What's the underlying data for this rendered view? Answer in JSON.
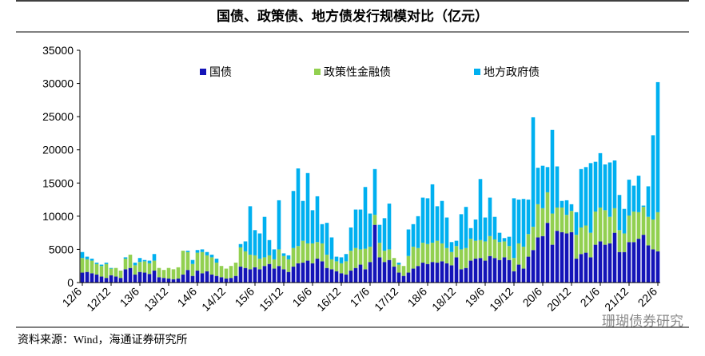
{
  "chart_data": {
    "type": "stacked_bar",
    "title": "国债、政策债、地方债发行规模对比（亿元）",
    "source": "资料来源：Wind，海通证券研究所",
    "watermark": "珊瑚债券研究",
    "categories": [
      "12/6",
      null,
      null,
      null,
      null,
      null,
      "12/12",
      null,
      null,
      null,
      null,
      null,
      "13/6",
      null,
      null,
      null,
      null,
      null,
      "13/12",
      null,
      null,
      null,
      null,
      null,
      "14/6",
      null,
      null,
      null,
      null,
      null,
      "14/12",
      null,
      null,
      null,
      null,
      null,
      "15/6",
      null,
      null,
      null,
      null,
      null,
      "15/12",
      null,
      null,
      null,
      null,
      null,
      "16/6",
      null,
      null,
      null,
      null,
      null,
      "16/12",
      null,
      null,
      null,
      null,
      null,
      "17/6",
      null,
      null,
      null,
      null,
      null,
      "17/12",
      null,
      null,
      null,
      null,
      null,
      "18/6",
      null,
      null,
      null,
      null,
      null,
      "18/12",
      null,
      null,
      null,
      null,
      null,
      "19/6",
      null,
      null,
      null,
      null,
      null,
      "19/12",
      null,
      null,
      null,
      null,
      null,
      "20/6",
      null,
      null,
      null,
      null,
      null,
      "20/12",
      null,
      null,
      null,
      null,
      null,
      "21/6",
      null,
      null,
      null,
      null,
      null,
      "21/12",
      null,
      null,
      null,
      null,
      null,
      "22/6"
    ],
    "series": [
      {
        "name": "国债",
        "color": "#1414b8",
        "values": [
          1500,
          1600,
          1400,
          1200,
          900,
          700,
          1100,
          900,
          700,
          2000,
          2200,
          1200,
          1600,
          1500,
          1300,
          1800,
          800,
          700,
          600,
          500,
          600,
          1200,
          1900,
          1000,
          1800,
          1400,
          1700,
          1200,
          1000,
          800,
          600,
          700,
          1000,
          2400,
          2200,
          2000,
          2300,
          2000,
          2500,
          2800,
          2100,
          2500,
          2000,
          1600,
          2400,
          2900,
          3000,
          3300,
          2900,
          3600,
          3200,
          2200,
          2000,
          1700,
          1400,
          1200,
          1800,
          2200,
          2700,
          2000,
          3100,
          8700,
          3800,
          3100,
          3400,
          2400,
          1500,
          1000,
          1500,
          2100,
          2500,
          3000,
          2800,
          3100,
          3000,
          3200,
          2900,
          2600,
          3800,
          2000,
          2200,
          3300,
          3600,
          3700,
          3300,
          4000,
          3700,
          3400,
          3800,
          3400,
          1700,
          2700,
          2100,
          3900,
          4900,
          6800,
          7000,
          9000,
          5700,
          7800,
          7600,
          7400,
          7600,
          3600,
          4300,
          4500,
          3800,
          5700,
          6200,
          5700,
          5900,
          7500,
          4600,
          4600,
          6100,
          6100,
          6600,
          7200,
          5600,
          5000,
          4700
        ]
      },
      {
        "name": "政策性金融债",
        "color": "#92d050",
        "values": [
          2200,
          1900,
          1900,
          1600,
          1600,
          2100,
          1000,
          1300,
          1100,
          1600,
          2000,
          1400,
          1500,
          1700,
          1600,
          1500,
          1400,
          1200,
          1600,
          1500,
          1700,
          3600,
          2700,
          1800,
          2700,
          3200,
          2400,
          2600,
          2000,
          1700,
          1500,
          1800,
          2000,
          2900,
          2500,
          2200,
          1800,
          1600,
          1300,
          1300,
          1400,
          2500,
          2000,
          1900,
          2800,
          2600,
          3300,
          2600,
          3000,
          2500,
          2700,
          2000,
          1500,
          1500,
          1500,
          2000,
          3000,
          3000,
          2300,
          3100,
          2300,
          1500,
          2200,
          1700,
          1600,
          1300,
          1200,
          1500,
          2500,
          3300,
          2700,
          3000,
          3000,
          2900,
          3300,
          2700,
          2300,
          2000,
          1700,
          3000,
          3000,
          3300,
          2700,
          2700,
          2900,
          3000,
          2800,
          2700,
          2400,
          2100,
          2000,
          3200,
          3300,
          3400,
          3500,
          5000,
          4200,
          4600,
          4700,
          3500,
          3700,
          2800,
          3200,
          3600,
          4000,
          4100,
          3700,
          5000,
          5100,
          5200,
          4000,
          3700,
          3300,
          2800,
          4000,
          4600,
          4000,
          4200,
          4300,
          4500,
          5900
        ]
      },
      {
        "name": "地方政府债",
        "color": "#00b0f0",
        "values": [
          900,
          400,
          300,
          200,
          200,
          200,
          100,
          0,
          0,
          200,
          0,
          400,
          600,
          200,
          400,
          1000,
          0,
          0,
          0,
          0,
          0,
          0,
          200,
          600,
          400,
          400,
          500,
          400,
          600,
          0,
          0,
          0,
          0,
          500,
          1500,
          7300,
          3800,
          3800,
          6100,
          2300,
          1500,
          7400,
          400,
          600,
          8600,
          11700,
          6000,
          10600,
          5000,
          6900,
          2900,
          4800,
          3300,
          700,
          900,
          1100,
          3500,
          5800,
          6000,
          9300,
          5000,
          6900,
          2700,
          4900,
          6900,
          0,
          300,
          0,
          4000,
          3400,
          4800,
          6800,
          6900,
          8800,
          5200,
          6400,
          4600,
          1500,
          800,
          5300,
          6200,
          1600,
          3200,
          9200,
          3600,
          5800,
          3400,
          1400,
          500,
          1400,
          9000,
          6600,
          7200,
          5200,
          16500,
          5500,
          6400,
          3800,
          12600,
          6200,
          1000,
          2200,
          1000,
          3400,
          8800,
          8800,
          10500,
          7500,
          8200,
          6900,
          8200,
          7200,
          5300,
          3700,
          5400,
          3900,
          5500,
          200,
          4600,
          12700,
          19600
        ]
      }
    ],
    "ylim": [
      0,
      35000
    ],
    "yticks": [
      0,
      5000,
      10000,
      15000,
      20000,
      25000,
      30000,
      35000
    ],
    "grid": false
  }
}
